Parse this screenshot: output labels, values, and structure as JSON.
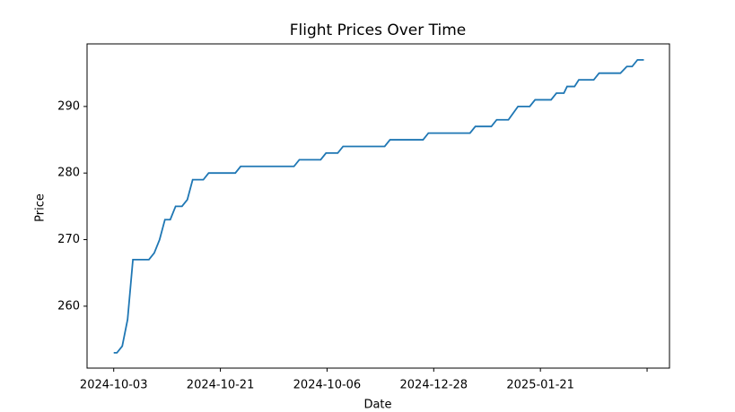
{
  "chart_data": {
    "type": "line",
    "title": "Flight Prices Over Time",
    "x_label": "Date",
    "y_label": "Price",
    "x": [
      0,
      3,
      8,
      13,
      18,
      33,
      38,
      43,
      48,
      53,
      58,
      64,
      69,
      74,
      84,
      89,
      114,
      119,
      169,
      174,
      194,
      199,
      210,
      215,
      254,
      259,
      290,
      295,
      334,
      339,
      354,
      359,
      370,
      379,
      390,
      395,
      410,
      415,
      422,
      425,
      432,
      436,
      450,
      455,
      475,
      481,
      486,
      491,
      497
    ],
    "series": [
      {
        "color": "#1f77b4",
        "values": [
          253,
          253,
          254,
          258,
          267,
          267,
          268,
          270,
          273,
          273,
          275,
          275,
          276,
          279,
          279,
          280,
          280,
          281,
          281,
          282,
          282,
          283,
          283,
          284,
          284,
          285,
          285,
          286,
          286,
          287,
          287,
          288,
          288,
          290,
          290,
          291,
          291,
          292,
          292,
          293,
          293,
          294,
          294,
          295,
          295,
          296,
          296,
          297,
          297
        ]
      }
    ],
    "xlim": [
      -25,
      521
    ],
    "ylim": [
      250.7,
      299.4
    ],
    "xticks": [
      {
        "value": 0,
        "label": "2024-10-03"
      },
      {
        "value": 100,
        "label": "2024-10-21"
      },
      {
        "value": 200,
        "label": "2024-10-06"
      },
      {
        "value": 300,
        "label": "2024-12-28"
      },
      {
        "value": 400,
        "label": "2025-01-21"
      },
      {
        "value": 500,
        "label": null
      }
    ],
    "yticks": [
      260,
      270,
      280,
      290
    ]
  }
}
